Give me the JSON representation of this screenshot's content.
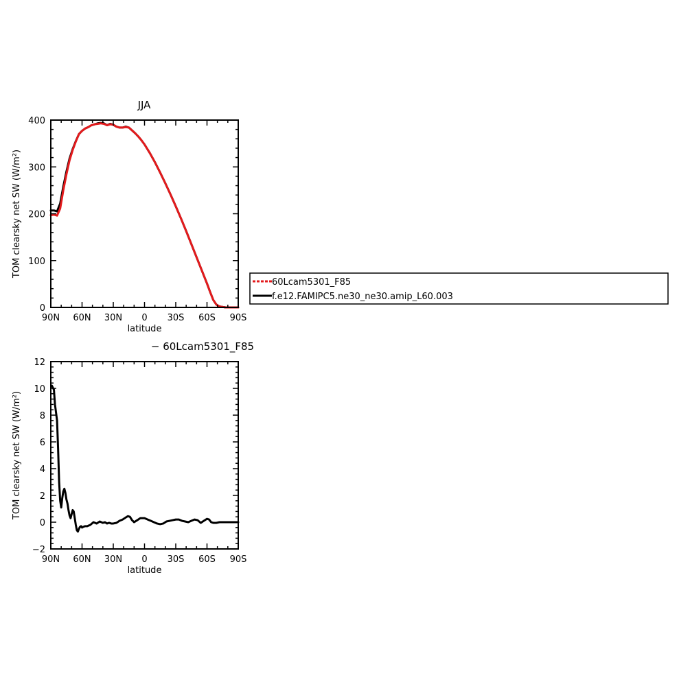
{
  "colors": {
    "series_red": "#e31a1c",
    "series_black": "#000000",
    "axis": "#000000"
  },
  "legend": [
    {
      "label": "60Lcam5301_F85",
      "color": "#e31a1c",
      "dash": true
    },
    {
      "label": "f.e12.FAMIPC5.ne30_ne30.amip_L60.003",
      "color": "#000000",
      "dash": false
    }
  ],
  "chart_data": [
    {
      "type": "line",
      "title": "JJA",
      "xlabel": "latitude",
      "ylabel": "TOM clearsky net SW (W/m²)",
      "xlim": [
        90,
        -90
      ],
      "ylim": [
        0,
        400
      ],
      "xticks": [
        {
          "value": 90,
          "label": "90N"
        },
        {
          "value": 60,
          "label": "60N"
        },
        {
          "value": 30,
          "label": "30N"
        },
        {
          "value": 0,
          "label": "0"
        },
        {
          "value": -30,
          "label": "30S"
        },
        {
          "value": -60,
          "label": "60S"
        },
        {
          "value": -90,
          "label": "90S"
        }
      ],
      "yticks": [
        {
          "value": 0,
          "label": "0"
        },
        {
          "value": 100,
          "label": "100"
        },
        {
          "value": 200,
          "label": "200"
        },
        {
          "value": 300,
          "label": "300"
        },
        {
          "value": 400,
          "label": "400"
        }
      ],
      "series": [
        {
          "name": "f.e12.FAMIPC5.ne30_ne30.amip_L60.003",
          "color": "#000000",
          "x": [
            90,
            87,
            84,
            81,
            78,
            75,
            72,
            69,
            66,
            63,
            60,
            57,
            54,
            51,
            48,
            45,
            42,
            39,
            36,
            33,
            30,
            27,
            24,
            21,
            18,
            15,
            12,
            9,
            6,
            3,
            0,
            -5,
            -10,
            -15,
            -20,
            -25,
            -30,
            -35,
            -40,
            -45,
            -50,
            -55,
            -60,
            -63,
            -66,
            -69,
            -72,
            -75,
            -78,
            -81,
            -84,
            -87,
            -90
          ],
          "y": [
            207,
            207,
            205,
            222,
            258,
            290,
            318,
            338,
            355,
            370,
            377,
            382,
            385,
            389,
            391,
            393,
            394,
            393,
            389,
            392,
            390,
            386,
            384,
            384,
            386,
            384,
            378,
            372,
            365,
            357,
            348,
            330,
            310,
            288,
            265,
            241,
            216,
            190,
            163,
            135,
            107,
            79,
            51,
            33,
            16,
            6,
            2,
            1,
            0,
            0,
            0,
            0,
            0
          ]
        },
        {
          "name": "60Lcam5301_F85",
          "color": "#e31a1c",
          "x": [
            90,
            87,
            84,
            81,
            78,
            75,
            72,
            69,
            66,
            63,
            60,
            57,
            54,
            51,
            48,
            45,
            42,
            39,
            36,
            33,
            30,
            27,
            24,
            21,
            18,
            15,
            12,
            9,
            6,
            3,
            0,
            -5,
            -10,
            -15,
            -20,
            -25,
            -30,
            -35,
            -40,
            -45,
            -50,
            -55,
            -60,
            -63,
            -66,
            -69,
            -72,
            -75,
            -78,
            -81,
            -84,
            -87,
            -90
          ],
          "y": [
            197,
            198,
            196,
            211,
            250,
            284,
            314,
            336,
            354,
            370,
            377,
            382,
            385,
            389,
            391,
            392,
            393,
            392,
            389,
            391,
            390,
            386,
            384,
            384,
            385,
            384,
            378,
            372,
            365,
            357,
            348,
            330,
            310,
            288,
            265,
            241,
            216,
            190,
            163,
            135,
            107,
            79,
            51,
            33,
            16,
            6,
            2,
            1,
            0,
            0,
            0,
            0,
            0
          ]
        }
      ]
    },
    {
      "type": "line",
      "title": "− 60Lcam5301_F85",
      "xlabel": "latitude",
      "ylabel": "TOM clearsky net SW (W/m²)",
      "xlim": [
        90,
        -90
      ],
      "ylim": [
        -2,
        12
      ],
      "xticks": [
        {
          "value": 90,
          "label": "90N"
        },
        {
          "value": 60,
          "label": "60N"
        },
        {
          "value": 30,
          "label": "30N"
        },
        {
          "value": 0,
          "label": "0"
        },
        {
          "value": -30,
          "label": "30S"
        },
        {
          "value": -60,
          "label": "60S"
        },
        {
          "value": -90,
          "label": "90S"
        }
      ],
      "yticks": [
        {
          "value": -2,
          "label": "−2"
        },
        {
          "value": 0,
          "label": "0"
        },
        {
          "value": 2,
          "label": "2"
        },
        {
          "value": 4,
          "label": "4"
        },
        {
          "value": 6,
          "label": "6"
        },
        {
          "value": 8,
          "label": "8"
        },
        {
          "value": 10,
          "label": "10"
        },
        {
          "value": 12,
          "label": "12"
        }
      ],
      "series": [
        {
          "name": "",
          "color": "#000000",
          "x": [
            89,
            87,
            86,
            85,
            84,
            83,
            82,
            81,
            80,
            79,
            78,
            77,
            76,
            75,
            74,
            73,
            72,
            71,
            70,
            69,
            68,
            67,
            66,
            65,
            64,
            63,
            62,
            61,
            60,
            59,
            57,
            55,
            52,
            49,
            46,
            43,
            40,
            38,
            36,
            34,
            32,
            30,
            27,
            24,
            21,
            18,
            16,
            14,
            12,
            10,
            8,
            6,
            4,
            2,
            0,
            -3,
            -6,
            -9,
            -12,
            -15,
            -18,
            -21,
            -24,
            -27,
            -30,
            -33,
            -36,
            -39,
            -42,
            -45,
            -48,
            -51,
            -54,
            -57,
            -60,
            -62,
            -64,
            -66,
            -69,
            -72,
            -75,
            -78,
            -81,
            -84,
            -87,
            -90
          ],
          "y": [
            10.2,
            9.9,
            8.8,
            8.2,
            7.6,
            5.5,
            3.0,
            1.6,
            1.1,
            1.8,
            2.3,
            2.5,
            2.2,
            1.7,
            1.4,
            0.9,
            0.5,
            0.3,
            0.6,
            0.9,
            0.8,
            0.3,
            -0.2,
            -0.6,
            -0.7,
            -0.5,
            -0.35,
            -0.3,
            -0.4,
            -0.35,
            -0.3,
            -0.3,
            -0.2,
            0.0,
            -0.1,
            0.05,
            -0.05,
            0.0,
            -0.1,
            -0.05,
            -0.1,
            -0.1,
            -0.05,
            0.1,
            0.2,
            0.35,
            0.45,
            0.4,
            0.15,
            0.0,
            0.1,
            0.2,
            0.3,
            0.3,
            0.3,
            0.2,
            0.1,
            0.0,
            -0.1,
            -0.15,
            -0.1,
            0.05,
            0.1,
            0.15,
            0.2,
            0.2,
            0.1,
            0.05,
            0.0,
            0.1,
            0.2,
            0.15,
            -0.05,
            0.1,
            0.25,
            0.2,
            0.0,
            -0.05,
            -0.05,
            0.0,
            0.0,
            0.0,
            0.0,
            0.0,
            0.0,
            0.0
          ]
        }
      ]
    }
  ]
}
